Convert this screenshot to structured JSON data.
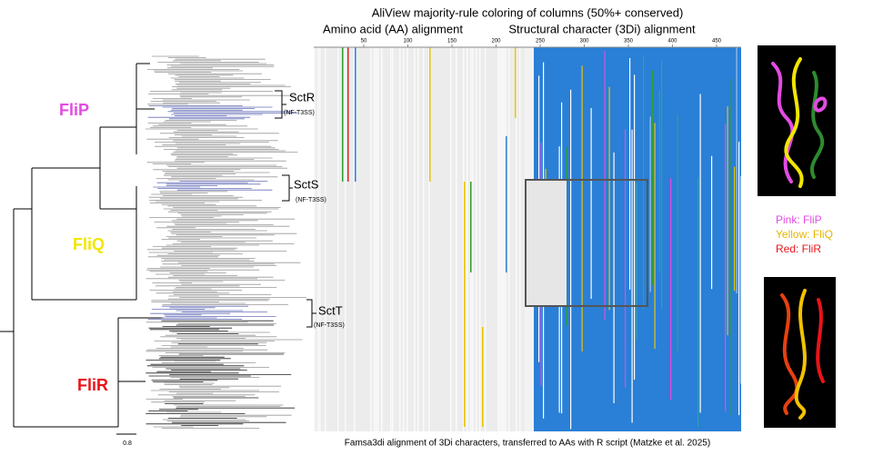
{
  "title": "AliView majority-rule coloring of columns (50%+ conserved)",
  "subtitles": [
    "Amino acid (AA) alignment",
    "Structural character (3Di) alignment"
  ],
  "tree": {
    "clades": [
      "FliP",
      "FliQ",
      "FliR"
    ],
    "groups": [
      {
        "label": "SctR",
        "note": "(NF-T3SS)"
      },
      {
        "label": "SctS",
        "note": "(NF-T3SS)"
      },
      {
        "label": "SctT",
        "note": "(NF-T3SS)"
      }
    ],
    "scale": "0.8"
  },
  "ruler": [
    50,
    100,
    150,
    200,
    250,
    300,
    350,
    400,
    450
  ],
  "legend": [
    "Pink: FliP",
    "Yellow: FliQ",
    "Red: FliR"
  ],
  "caption": "Famsa3di alignment of 3Di characters, transferred to AAs with R script (Matzke et al. 2025)"
}
